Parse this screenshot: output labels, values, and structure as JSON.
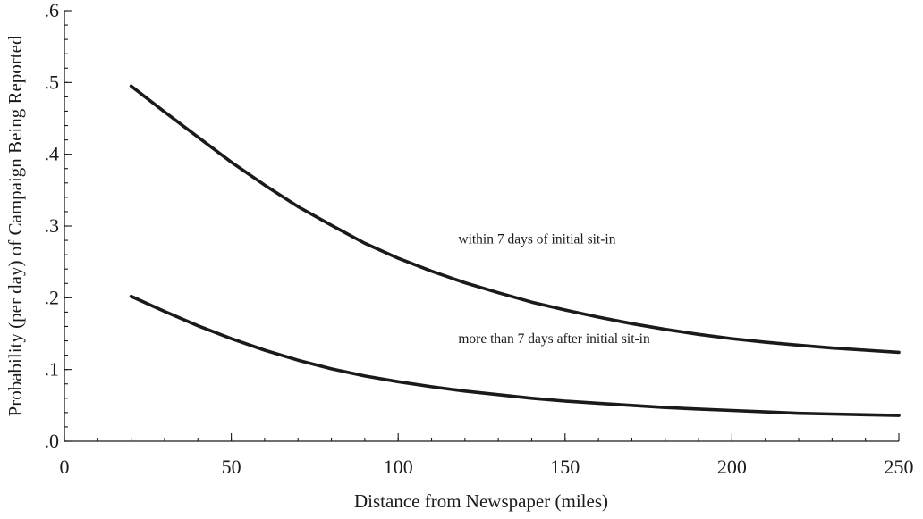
{
  "chart_data": {
    "type": "line",
    "xlabel": "Distance from Newspaper (miles)",
    "ylabel": "Probability (per day) of Campaign Being Reported",
    "xlim": [
      0,
      250
    ],
    "ylim": [
      0,
      0.6
    ],
    "grid": false,
    "x_ticks": [
      {
        "value": 0,
        "label": "0"
      },
      {
        "value": 50,
        "label": "50"
      },
      {
        "value": 100,
        "label": "100"
      },
      {
        "value": 150,
        "label": "150"
      },
      {
        "value": 200,
        "label": "200"
      },
      {
        "value": 250,
        "label": "250"
      }
    ],
    "x_minor_step": 10,
    "y_ticks": [
      {
        "value": 0,
        "label": ".0"
      },
      {
        "value": 0.1,
        "label": ".1"
      },
      {
        "value": 0.2,
        "label": ".2"
      },
      {
        "value": 0.3,
        "label": ".3"
      },
      {
        "value": 0.4,
        "label": ".4"
      },
      {
        "value": 0.5,
        "label": ".5"
      },
      {
        "value": 0.6,
        "label": ".6"
      }
    ],
    "y_minor_step": 0.02,
    "series": [
      {
        "name": "within 7 days of initial sit-in",
        "x": [
          20,
          30,
          40,
          50,
          60,
          70,
          80,
          90,
          100,
          110,
          120,
          130,
          140,
          150,
          160,
          170,
          180,
          190,
          200,
          210,
          220,
          230,
          240,
          250
        ],
        "y": [
          0.495,
          0.459,
          0.424,
          0.389,
          0.357,
          0.327,
          0.301,
          0.276,
          0.255,
          0.237,
          0.221,
          0.207,
          0.194,
          0.183,
          0.173,
          0.164,
          0.156,
          0.149,
          0.143,
          0.138,
          0.134,
          0.13,
          0.127,
          0.124
        ]
      },
      {
        "name": "more than 7 days after initial sit-in",
        "x": [
          20,
          30,
          40,
          50,
          60,
          70,
          80,
          90,
          100,
          110,
          120,
          130,
          140,
          150,
          160,
          170,
          180,
          190,
          200,
          210,
          220,
          230,
          240,
          250
        ],
        "y": [
          0.202,
          0.181,
          0.161,
          0.143,
          0.127,
          0.113,
          0.101,
          0.091,
          0.083,
          0.076,
          0.07,
          0.065,
          0.06,
          0.056,
          0.053,
          0.05,
          0.047,
          0.045,
          0.043,
          0.041,
          0.039,
          0.038,
          0.037,
          0.036
        ]
      }
    ],
    "annotations": [
      {
        "text": "within 7 days of initial sit-in",
        "x": 118,
        "y": 0.276
      },
      {
        "text": "more than 7 days after initial sit-in",
        "x": 118,
        "y": 0.137
      }
    ]
  }
}
